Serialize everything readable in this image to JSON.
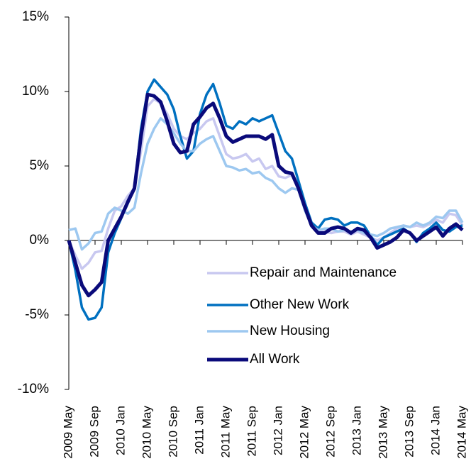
{
  "chart_data": {
    "type": "line",
    "categories": [
      "2009 May",
      null,
      null,
      null,
      "2009 Sep",
      null,
      null,
      null,
      "2010 Jan",
      null,
      null,
      null,
      "2010 May",
      null,
      null,
      null,
      "2010 Sep",
      null,
      null,
      null,
      "2011 Jan",
      null,
      null,
      null,
      "2011 May",
      null,
      null,
      null,
      "2011 Sep",
      null,
      null,
      null,
      "2012 Jan",
      null,
      null,
      null,
      "2012 May",
      null,
      null,
      null,
      "2012 Sep",
      null,
      null,
      null,
      "2013 Jan",
      null,
      null,
      null,
      "2013 May",
      null,
      null,
      null,
      "2013 Sep",
      null,
      null,
      null,
      "2014 Jan",
      null,
      null,
      null,
      "2014 May"
    ],
    "series": [
      {
        "name": "Repair and Maintenance",
        "color": "#c8c8f0",
        "values": [
          0,
          -1.0,
          -1.9,
          -1.5,
          -0.8,
          -0.7,
          0.8,
          2.0,
          2.3,
          3.0,
          3.5,
          6.0,
          9.0,
          9.5,
          9.2,
          8.5,
          7.5,
          7.0,
          6.8,
          7.2,
          7.5,
          8.0,
          8.2,
          7.0,
          5.8,
          5.5,
          5.6,
          5.8,
          5.3,
          5.5,
          4.8,
          5.0,
          4.3,
          4.2,
          4.4,
          3.5,
          2.3,
          1.2,
          0.7,
          0.6,
          0.5,
          0.6,
          0.6,
          0.4,
          0.6,
          0.4,
          0.2,
          0,
          0.2,
          0.5,
          0.8,
          1.0,
          0.9,
          1.0,
          0.9,
          1.1,
          1.4,
          1.2,
          1.8,
          1.7,
          1.0
        ]
      },
      {
        "name": "Other New Work",
        "color": "#0070c0",
        "values": [
          0,
          -2,
          -4.5,
          -5.3,
          -5.2,
          -4.5,
          -0.8,
          0.5,
          1.5,
          2.5,
          3.5,
          7.5,
          10.0,
          10.8,
          10.3,
          9.8,
          8.8,
          7.0,
          5.5,
          6.0,
          8.5,
          9.8,
          10.5,
          9.2,
          7.7,
          7.5,
          8.0,
          7.8,
          8.2,
          8.0,
          8.2,
          8.4,
          7.2,
          6.0,
          5.5,
          4.0,
          2.5,
          1.2,
          0.8,
          1.4,
          1.5,
          1.4,
          1.0,
          1.2,
          1.2,
          1.0,
          0.3,
          -0.3,
          0.2,
          0.4,
          0.6,
          0.8,
          0.5,
          -0.1,
          0.5,
          0.8,
          1.2,
          0.7,
          0.6,
          0.9,
          1.0
        ]
      },
      {
        "name": "New Housing",
        "color": "#9dc8f0",
        "values": [
          0.7,
          0.8,
          -0.6,
          -0.2,
          0.5,
          0.6,
          1.8,
          2.2,
          2.0,
          1.8,
          2.2,
          4.5,
          6.5,
          7.5,
          8.2,
          7.8,
          7.2,
          6.5,
          6.0,
          6.0,
          6.5,
          6.8,
          7.0,
          6.0,
          5.0,
          4.9,
          4.7,
          4.8,
          4.5,
          4.6,
          4.2,
          4.0,
          3.5,
          3.2,
          3.5,
          3.4,
          2.0,
          1.0,
          0.7,
          0.8,
          0.8,
          0.6,
          0.7,
          0.6,
          0.7,
          0.5,
          0.4,
          0.3,
          0.5,
          0.8,
          0.9,
          1.0,
          0.9,
          1.2,
          1.0,
          1.2,
          1.6,
          1.5,
          2.0,
          2.0,
          1.2
        ]
      },
      {
        "name": "All Work",
        "color": "#0a0a7a",
        "values": [
          0,
          -1.5,
          -3.0,
          -3.7,
          -3.3,
          -2.8,
          0,
          0.8,
          1.6,
          2.6,
          3.5,
          7.0,
          9.8,
          9.7,
          9.3,
          8.0,
          6.5,
          5.9,
          6.0,
          7.8,
          8.3,
          8.9,
          9.2,
          8.2,
          7.0,
          6.6,
          6.8,
          7.0,
          7.0,
          7.0,
          6.8,
          7.1,
          5.0,
          4.6,
          4.5,
          3.5,
          2.2,
          1.0,
          0.5,
          0.5,
          0.8,
          0.9,
          0.8,
          0.5,
          0.8,
          0.7,
          0.2,
          -0.5,
          -0.3,
          -0.1,
          0.2,
          0.7,
          0.5,
          0.0,
          0.3,
          0.6,
          0.9,
          0.3,
          0.8,
          1.1,
          0.7
        ]
      }
    ],
    "ylim": [
      -10,
      15
    ],
    "yticks": [
      {
        "value": -10,
        "label": "-10%"
      },
      {
        "value": -5,
        "label": "-5%"
      },
      {
        "value": 0,
        "label": "0%"
      },
      {
        "value": 5,
        "label": "5%"
      },
      {
        "value": 10,
        "label": "10%"
      },
      {
        "value": 15,
        "label": "15%"
      }
    ],
    "grid": false,
    "legend": "lower right"
  }
}
